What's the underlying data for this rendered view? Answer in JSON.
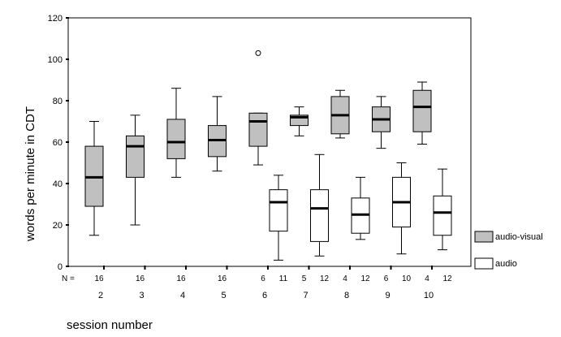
{
  "chart_data": {
    "type": "boxplot",
    "title": "",
    "xlabel": "session number",
    "ylabel": "words per minute in CDT",
    "ylim": [
      0,
      120
    ],
    "yticks": [
      0,
      20,
      40,
      60,
      80,
      100,
      120
    ],
    "n_prefix": "N =",
    "categories": [
      "2",
      "3",
      "4",
      "5",
      "6",
      "7",
      "8",
      "9",
      "10"
    ],
    "series": [
      {
        "name": "audio-visual",
        "color": "#c0c0c0",
        "boxes": [
          {
            "category": "2",
            "n": "16",
            "min": 15,
            "q1": 29,
            "median": 43,
            "q3": 58,
            "max": 70
          },
          {
            "category": "3",
            "n": "16",
            "min": 20,
            "q1": 43,
            "median": 58,
            "q3": 63,
            "max": 73
          },
          {
            "category": "4",
            "n": "16",
            "min": 43,
            "q1": 52,
            "median": 60,
            "q3": 71,
            "max": 86
          },
          {
            "category": "5",
            "n": "16",
            "min": 46,
            "q1": 53,
            "median": 61,
            "q3": 68,
            "max": 82
          },
          {
            "category": "6",
            "n": "6",
            "min": 49,
            "q1": 58,
            "median": 70,
            "q3": 74,
            "max": 74,
            "outliers": [
              103
            ]
          },
          {
            "category": "7",
            "n": "5",
            "min": 63,
            "q1": 68,
            "median": 72,
            "q3": 73,
            "max": 77
          },
          {
            "category": "8",
            "n": "4",
            "min": 62,
            "q1": 64,
            "median": 73,
            "q3": 82,
            "max": 85
          },
          {
            "category": "9",
            "n": "6",
            "min": 57,
            "q1": 65,
            "median": 71,
            "q3": 77,
            "max": 82
          },
          {
            "category": "10",
            "n": "4",
            "min": 59,
            "q1": 65,
            "median": 77,
            "q3": 85,
            "max": 89
          }
        ]
      },
      {
        "name": "audio",
        "color": "#ffffff",
        "boxes": [
          {
            "category": "6",
            "n": "11",
            "min": 3,
            "q1": 17,
            "median": 31,
            "q3": 37,
            "max": 44
          },
          {
            "category": "7",
            "n": "12",
            "min": 5,
            "q1": 12,
            "median": 28,
            "q3": 37,
            "max": 54
          },
          {
            "category": "8",
            "n": "12",
            "min": 13,
            "q1": 16,
            "median": 25,
            "q3": 33,
            "max": 43
          },
          {
            "category": "9",
            "n": "10",
            "min": 6,
            "q1": 19,
            "median": 31,
            "q3": 43,
            "max": 50
          },
          {
            "category": "10",
            "n": "12",
            "min": 8,
            "q1": 15,
            "median": 26,
            "q3": 34,
            "max": 47
          }
        ]
      }
    ],
    "legend": "right",
    "grid": false
  }
}
